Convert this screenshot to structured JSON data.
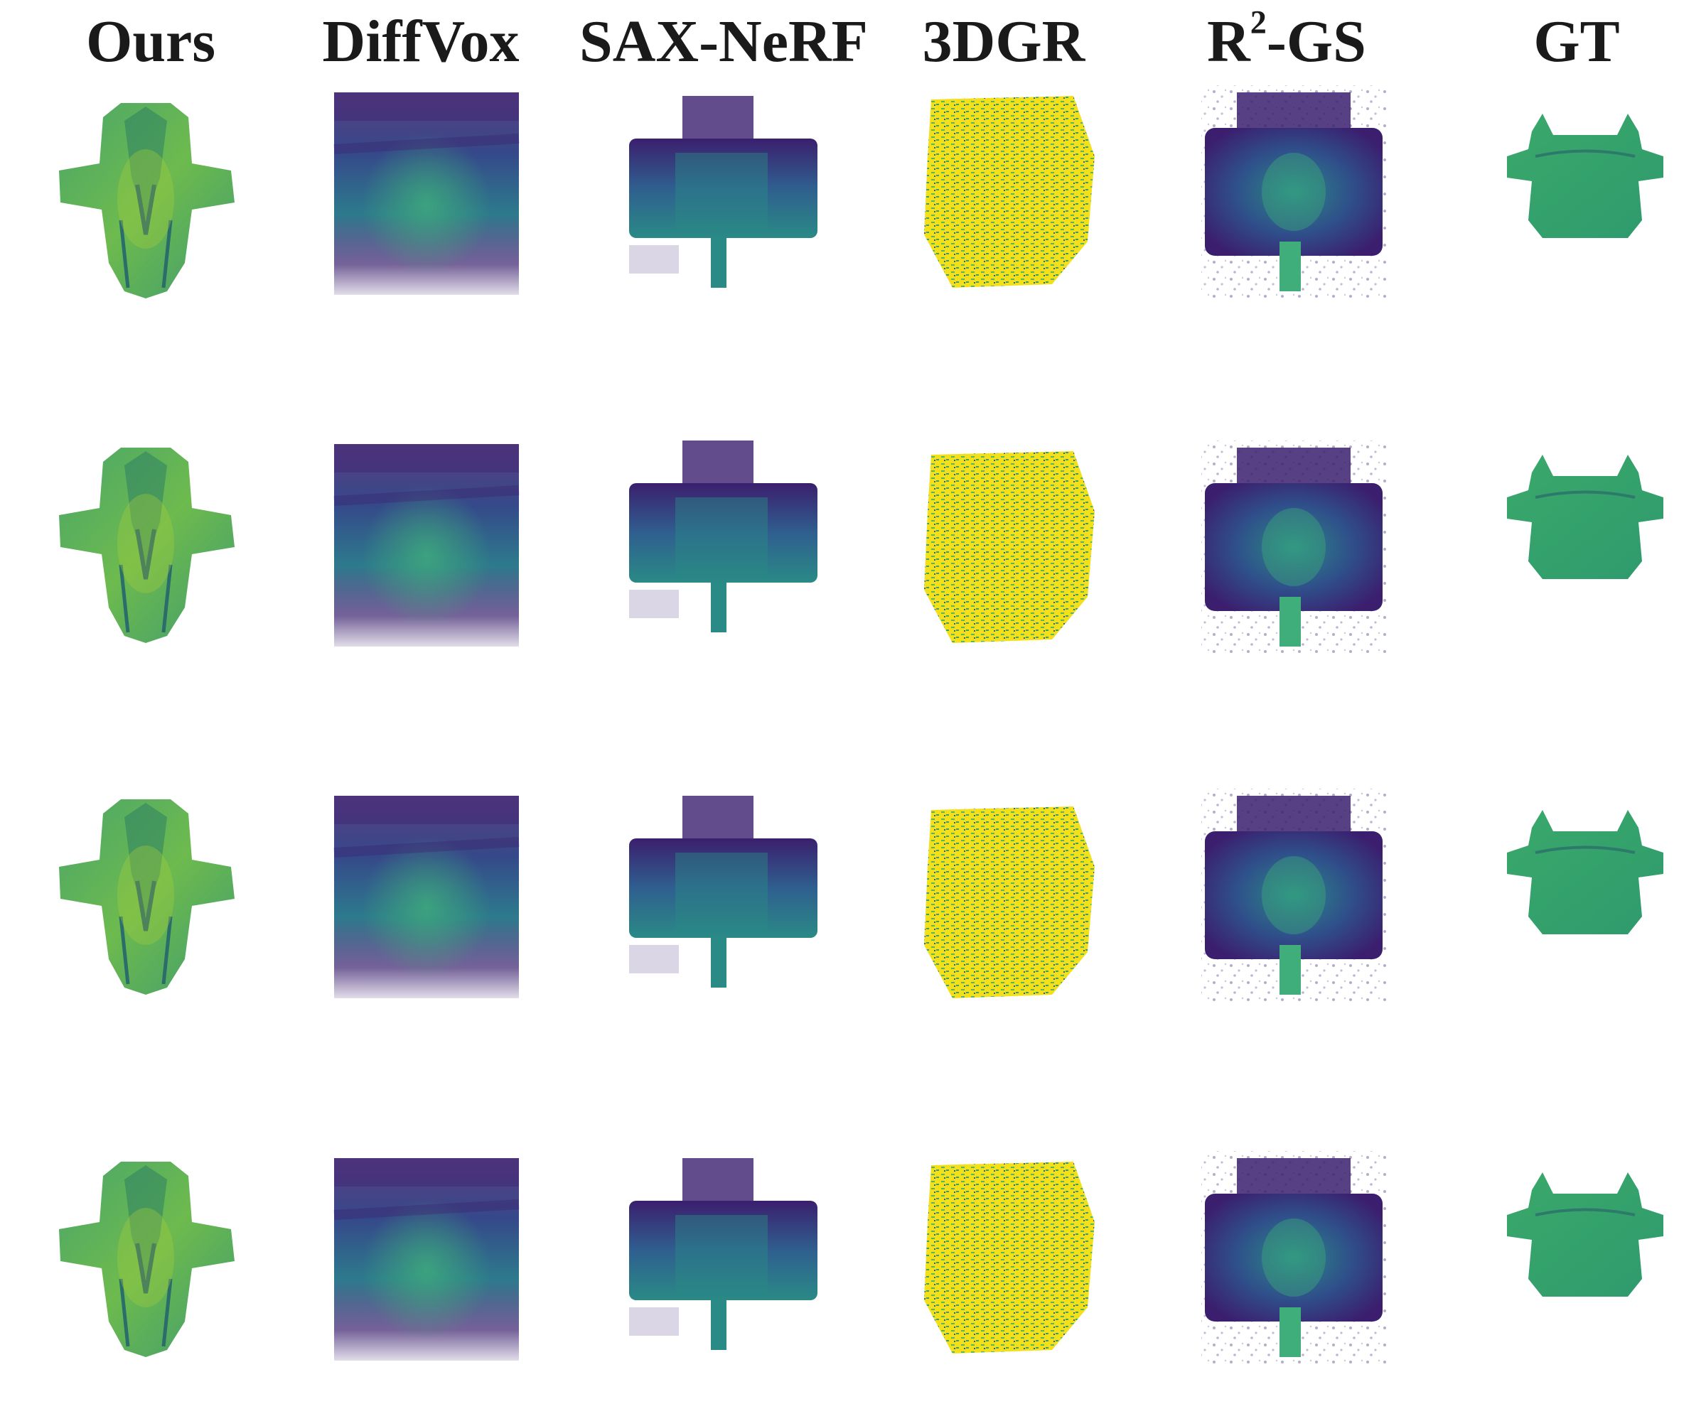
{
  "figure": {
    "columns": [
      {
        "id": "ours",
        "label": "Ours"
      },
      {
        "id": "diffvox",
        "label": "DiffVox"
      },
      {
        "id": "saxnerf",
        "label": "SAX-NeRF"
      },
      {
        "id": "3dgr",
        "label": "3DGR"
      },
      {
        "id": "r2gs",
        "label_main": "R",
        "label_sup": "2",
        "label_tail": "-GS"
      },
      {
        "id": "gt",
        "label": "GT"
      }
    ],
    "rows": 4,
    "colormap": {
      "dark": "#3b1f6e",
      "mid_blue": "#2f5f8f",
      "teal": "#2a8a86",
      "green": "#3fae62",
      "light_green": "#7ac24a",
      "yellow": "#f2e01a"
    }
  }
}
